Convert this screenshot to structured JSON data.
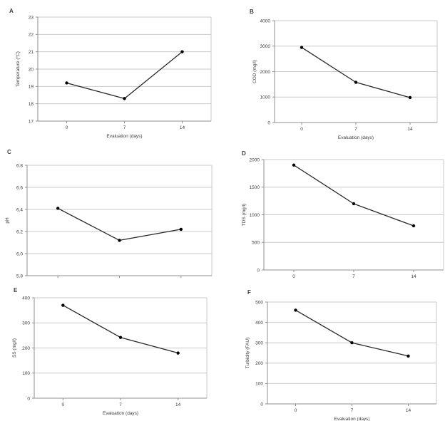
{
  "page": {
    "background": "#ffffff",
    "description": "Figure with six line charts (A-F) of water quality parameters over evaluation days"
  },
  "colors": {
    "line": "#262626",
    "marker": "#000000",
    "gridline": "#c9c9c9",
    "plot_border": "#c9c9c9",
    "axis": "#8f8f8f",
    "text": "#3c3c3c"
  },
  "chart_data": [
    {
      "panel_label": "A",
      "type": "line",
      "title": "",
      "xlabel": "Evaluation (days)",
      "ylabel": "Temperature (°C)",
      "categories": [
        "0",
        "7",
        "14"
      ],
      "x_tick_labels": [
        "0",
        "7",
        "14"
      ],
      "series": [
        {
          "name": "Temperature",
          "values": [
            19.2,
            18.3,
            21.0
          ]
        }
      ],
      "ylim": [
        17,
        23
      ],
      "y_ticks": [
        17,
        18,
        19,
        20,
        21,
        22,
        23
      ],
      "y_tick_labels": [
        "17",
        "18",
        "19",
        "20",
        "21",
        "22",
        "23"
      ],
      "grid": true,
      "legend": "none"
    },
    {
      "panel_label": "B",
      "type": "line",
      "title": "",
      "xlabel": "Evaluation (days)",
      "ylabel": "COD (mg/l)",
      "categories": [
        "0",
        "7",
        "14"
      ],
      "x_tick_labels": [
        "0",
        "7",
        "14"
      ],
      "series": [
        {
          "name": "COD",
          "values": [
            2950,
            1580,
            980
          ]
        }
      ],
      "ylim": [
        0,
        4000
      ],
      "y_ticks": [
        0,
        1000,
        2000,
        3000,
        4000
      ],
      "y_tick_labels": [
        "0",
        "1000",
        "2000",
        "3000",
        "4000"
      ],
      "grid": true,
      "legend": "none"
    },
    {
      "panel_label": "C",
      "type": "line",
      "title": "",
      "xlabel": "",
      "ylabel": "pH",
      "categories": [
        "0",
        "7",
        "14"
      ],
      "x_tick_labels": [],
      "series": [
        {
          "name": "pH",
          "values": [
            6.41,
            6.12,
            6.22
          ]
        }
      ],
      "ylim": [
        5.8,
        6.8
      ],
      "y_ticks": [
        5.8,
        6.0,
        6.2,
        6.4,
        6.6,
        6.8
      ],
      "y_tick_labels": [
        "5.8",
        "6.0",
        "6.2",
        "6.4",
        "6.6",
        "6.8"
      ],
      "grid": true,
      "legend": "none"
    },
    {
      "panel_label": "D",
      "type": "line",
      "title": "",
      "xlabel": "",
      "ylabel": "TDS (mg/l)",
      "categories": [
        "0",
        "7",
        "14"
      ],
      "x_tick_labels": [
        "0",
        "7",
        "14"
      ],
      "series": [
        {
          "name": "TDS",
          "values": [
            1900,
            1200,
            800
          ]
        }
      ],
      "ylim": [
        0,
        2000
      ],
      "y_ticks": [
        0,
        500,
        1000,
        1500,
        2000
      ],
      "y_tick_labels": [
        "0",
        "500",
        "1000",
        "1500",
        "2000"
      ],
      "grid": true,
      "legend": "none"
    },
    {
      "panel_label": "E",
      "type": "line",
      "title": "",
      "xlabel": "Evaluation (days)",
      "ylabel": "SS (mg/l)",
      "categories": [
        "0",
        "7",
        "14"
      ],
      "x_tick_labels": [
        "0",
        "7",
        "14"
      ],
      "series": [
        {
          "name": "SS",
          "values": [
            370,
            242,
            180
          ]
        }
      ],
      "ylim": [
        0,
        400
      ],
      "y_ticks": [
        0,
        100,
        200,
        300,
        400
      ],
      "y_tick_labels": [
        "0",
        "100",
        "200",
        "300",
        "400"
      ],
      "grid": true,
      "legend": "none"
    },
    {
      "panel_label": "F",
      "type": "line",
      "title": "",
      "xlabel": "Evaluation (days)",
      "ylabel": "Turbidity (FAU)",
      "categories": [
        "0",
        "7",
        "14"
      ],
      "x_tick_labels": [
        "0",
        "7",
        "14"
      ],
      "series": [
        {
          "name": "Turbidity",
          "values": [
            460,
            300,
            235
          ]
        }
      ],
      "ylim": [
        0,
        500
      ],
      "y_ticks": [
        0,
        100,
        200,
        300,
        400,
        500
      ],
      "y_tick_labels": [
        "0",
        "100",
        "200",
        "300",
        "400",
        "500"
      ],
      "grid": true,
      "legend": "none"
    }
  ]
}
